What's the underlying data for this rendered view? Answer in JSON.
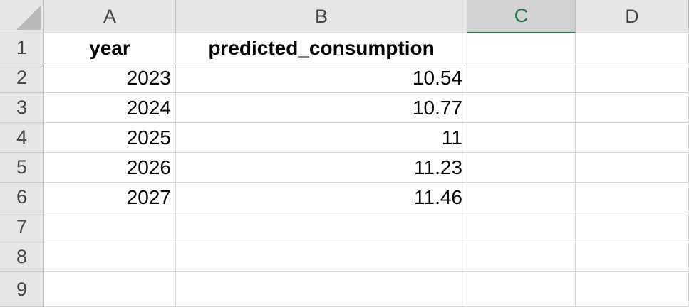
{
  "columns": [
    "A",
    "B",
    "C",
    "D"
  ],
  "active_column": "C",
  "rows": [
    "1",
    "2",
    "3",
    "4",
    "5",
    "6",
    "7",
    "8",
    "9"
  ],
  "header_row": {
    "year": "year",
    "predicted_consumption": "predicted_consumption"
  },
  "data_rows": [
    {
      "year": "2023",
      "predicted_consumption": "10.54"
    },
    {
      "year": "2024",
      "predicted_consumption": "10.77"
    },
    {
      "year": "2025",
      "predicted_consumption": "11"
    },
    {
      "year": "2026",
      "predicted_consumption": "11.23"
    },
    {
      "year": "2027",
      "predicted_consumption": "11.46"
    }
  ]
}
